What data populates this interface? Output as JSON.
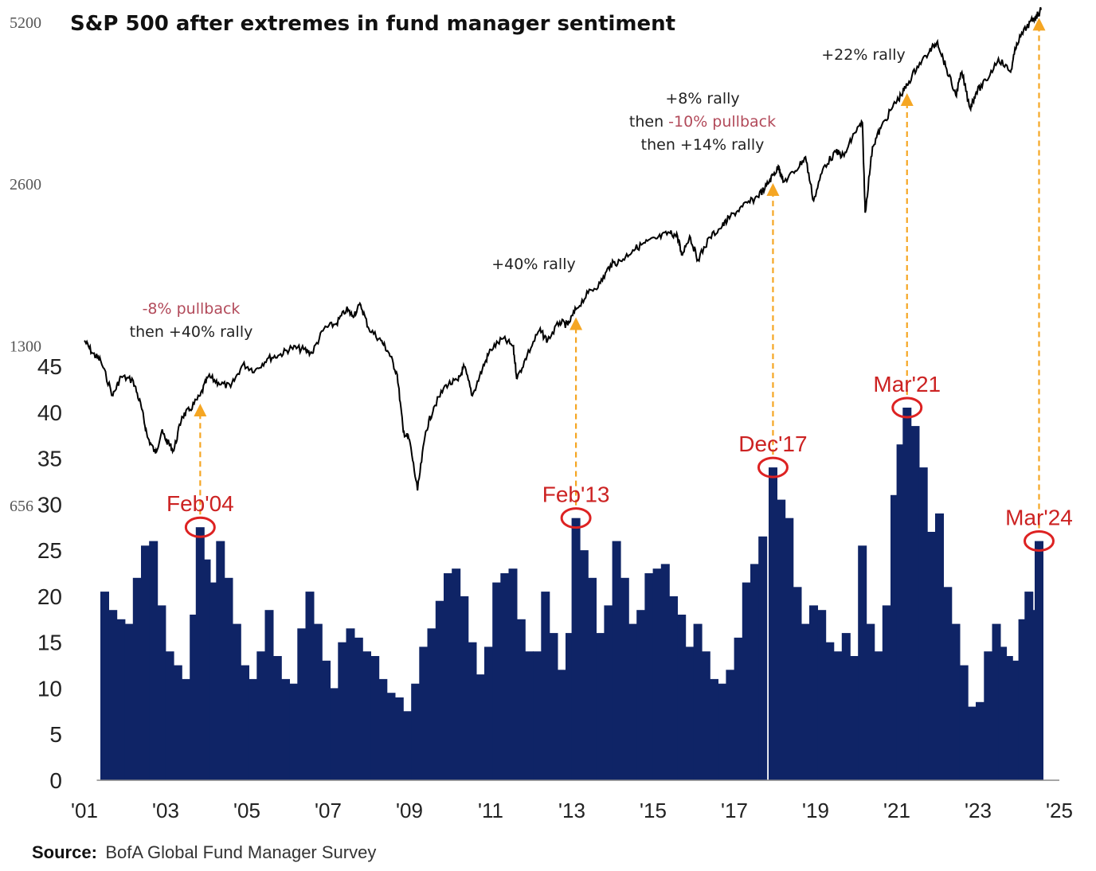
{
  "chart_data": {
    "type": "bar+line",
    "title": "S&P 500 after extremes in fund manager sentiment",
    "source_label": "Source:",
    "source_text": "BofA Global Fund Manager Survey",
    "colors": {
      "bars": "#0f2466",
      "sp500_line": "#000000",
      "arrows": "#f5a623",
      "highlight": "#dd2222",
      "pullback_text": "#b24a5a"
    },
    "x_ticks": [
      "'01",
      "'03",
      "'05",
      "'07",
      "'09",
      "'11",
      "'13",
      "'15",
      "'17",
      "'19",
      "'21",
      "'23",
      "'25"
    ],
    "x_tick_years": [
      2001,
      2003,
      2005,
      2007,
      2009,
      2011,
      2013,
      2015,
      2017,
      2019,
      2021,
      2023,
      2025
    ],
    "x_range": [
      2001,
      2025
    ],
    "bar_axis": {
      "ticks": [
        "0",
        "5",
        "10",
        "15",
        "20",
        "25",
        "30",
        "35",
        "40",
        "45"
      ],
      "ylim": [
        0,
        45
      ]
    },
    "sp500_axis": {
      "ticks": [
        "656",
        "1300",
        "2600",
        "5200"
      ],
      "tick_values": [
        656,
        1300,
        2600,
        5200
      ],
      "scale": "log"
    },
    "bars": [
      [
        2001.5,
        20.5
      ],
      [
        2001.7,
        18.5
      ],
      [
        2001.9,
        17.5
      ],
      [
        2002.1,
        17.0
      ],
      [
        2002.3,
        22.0
      ],
      [
        2002.5,
        25.5
      ],
      [
        2002.7,
        26.0
      ],
      [
        2002.9,
        19.0
      ],
      [
        2003.1,
        14.0
      ],
      [
        2003.3,
        12.5
      ],
      [
        2003.5,
        11.0
      ],
      [
        2003.7,
        18.0
      ],
      [
        2003.85,
        27.5
      ],
      [
        2004.0,
        24.0
      ],
      [
        2004.2,
        21.5
      ],
      [
        2004.35,
        26.0
      ],
      [
        2004.55,
        22.0
      ],
      [
        2004.75,
        17.0
      ],
      [
        2004.95,
        12.5
      ],
      [
        2005.15,
        11.0
      ],
      [
        2005.35,
        14.0
      ],
      [
        2005.55,
        18.5
      ],
      [
        2005.75,
        13.5
      ],
      [
        2005.95,
        11.0
      ],
      [
        2006.15,
        10.5
      ],
      [
        2006.35,
        16.5
      ],
      [
        2006.55,
        20.5
      ],
      [
        2006.75,
        17.0
      ],
      [
        2006.95,
        13.0
      ],
      [
        2007.15,
        10.0
      ],
      [
        2007.35,
        15.0
      ],
      [
        2007.55,
        16.5
      ],
      [
        2007.75,
        15.5
      ],
      [
        2007.95,
        14.0
      ],
      [
        2008.15,
        13.5
      ],
      [
        2008.35,
        11.0
      ],
      [
        2008.55,
        9.5
      ],
      [
        2008.75,
        9.0
      ],
      [
        2008.95,
        7.5
      ],
      [
        2009.15,
        10.5
      ],
      [
        2009.35,
        14.5
      ],
      [
        2009.55,
        16.5
      ],
      [
        2009.75,
        19.5
      ],
      [
        2009.95,
        22.5
      ],
      [
        2010.15,
        23.0
      ],
      [
        2010.35,
        20.0
      ],
      [
        2010.55,
        15.0
      ],
      [
        2010.75,
        11.5
      ],
      [
        2010.95,
        14.5
      ],
      [
        2011.15,
        21.5
      ],
      [
        2011.35,
        22.5
      ],
      [
        2011.55,
        23.0
      ],
      [
        2011.75,
        17.5
      ],
      [
        2011.95,
        14.0
      ],
      [
        2012.15,
        14.0
      ],
      [
        2012.35,
        20.5
      ],
      [
        2012.55,
        16.0
      ],
      [
        2012.75,
        12.0
      ],
      [
        2012.95,
        16.0
      ],
      [
        2013.1,
        28.5
      ],
      [
        2013.3,
        25.0
      ],
      [
        2013.5,
        22.0
      ],
      [
        2013.7,
        16.0
      ],
      [
        2013.9,
        19.0
      ],
      [
        2014.1,
        26.0
      ],
      [
        2014.3,
        22.0
      ],
      [
        2014.5,
        17.0
      ],
      [
        2014.7,
        18.5
      ],
      [
        2014.9,
        22.5
      ],
      [
        2015.1,
        23.0
      ],
      [
        2015.3,
        23.5
      ],
      [
        2015.5,
        20.0
      ],
      [
        2015.7,
        18.0
      ],
      [
        2015.9,
        14.5
      ],
      [
        2016.1,
        17.0
      ],
      [
        2016.3,
        14.0
      ],
      [
        2016.5,
        11.0
      ],
      [
        2016.7,
        10.5
      ],
      [
        2016.9,
        12.0
      ],
      [
        2017.1,
        15.5
      ],
      [
        2017.3,
        21.5
      ],
      [
        2017.5,
        23.5
      ],
      [
        2017.7,
        26.5
      ],
      [
        2017.95,
        34.0
      ],
      [
        2018.15,
        30.5
      ],
      [
        2018.35,
        28.5
      ],
      [
        2018.55,
        21.0
      ],
      [
        2018.75,
        17.0
      ],
      [
        2018.95,
        19.0
      ],
      [
        2019.15,
        18.5
      ],
      [
        2019.35,
        15.0
      ],
      [
        2019.55,
        14.0
      ],
      [
        2019.75,
        16.0
      ],
      [
        2019.95,
        13.5
      ],
      [
        2020.15,
        25.5
      ],
      [
        2020.35,
        17.0
      ],
      [
        2020.55,
        14.0
      ],
      [
        2020.75,
        19.0
      ],
      [
        2020.95,
        31.0
      ],
      [
        2021.1,
        36.5
      ],
      [
        2021.25,
        40.5
      ],
      [
        2021.45,
        38.5
      ],
      [
        2021.65,
        34.0
      ],
      [
        2021.85,
        27.0
      ],
      [
        2022.05,
        29.0
      ],
      [
        2022.25,
        21.0
      ],
      [
        2022.45,
        17.0
      ],
      [
        2022.65,
        12.5
      ],
      [
        2022.85,
        8.0
      ],
      [
        2023.05,
        8.5
      ],
      [
        2023.25,
        14.0
      ],
      [
        2023.45,
        17.0
      ],
      [
        2023.6,
        14.5
      ],
      [
        2023.75,
        13.5
      ],
      [
        2023.95,
        13.0
      ],
      [
        2024.1,
        17.5
      ],
      [
        2024.25,
        20.5
      ],
      [
        2024.4,
        18.5
      ],
      [
        2024.5,
        26.0
      ]
    ],
    "sp500": [
      [
        2001.0,
        1330
      ],
      [
        2001.2,
        1260
      ],
      [
        2001.4,
        1220
      ],
      [
        2001.7,
        1050
      ],
      [
        2001.9,
        1140
      ],
      [
        2002.2,
        1120
      ],
      [
        2002.4,
        1000
      ],
      [
        2002.55,
        880
      ],
      [
        2002.75,
        820
      ],
      [
        2002.9,
        900
      ],
      [
        2003.05,
        860
      ],
      [
        2003.2,
        830
      ],
      [
        2003.4,
        960
      ],
      [
        2003.6,
        990
      ],
      [
        2003.85,
        1050
      ],
      [
        2004.05,
        1140
      ],
      [
        2004.3,
        1110
      ],
      [
        2004.6,
        1090
      ],
      [
        2004.9,
        1200
      ],
      [
        2005.2,
        1170
      ],
      [
        2005.5,
        1230
      ],
      [
        2005.8,
        1250
      ],
      [
        2006.1,
        1290
      ],
      [
        2006.4,
        1280
      ],
      [
        2006.6,
        1260
      ],
      [
        2006.9,
        1400
      ],
      [
        2007.2,
        1430
      ],
      [
        2007.45,
        1520
      ],
      [
        2007.6,
        1480
      ],
      [
        2007.8,
        1550
      ],
      [
        2008.0,
        1400
      ],
      [
        2008.3,
        1330
      ],
      [
        2008.5,
        1260
      ],
      [
        2008.7,
        1150
      ],
      [
        2008.85,
        900
      ],
      [
        2009.0,
        870
      ],
      [
        2009.2,
        700
      ],
      [
        2009.4,
        900
      ],
      [
        2009.6,
        1000
      ],
      [
        2009.9,
        1100
      ],
      [
        2010.2,
        1120
      ],
      [
        2010.35,
        1190
      ],
      [
        2010.55,
        1050
      ],
      [
        2010.8,
        1180
      ],
      [
        2011.0,
        1280
      ],
      [
        2011.3,
        1340
      ],
      [
        2011.55,
        1300
      ],
      [
        2011.65,
        1130
      ],
      [
        2011.9,
        1250
      ],
      [
        2012.2,
        1390
      ],
      [
        2012.4,
        1330
      ],
      [
        2012.7,
        1440
      ],
      [
        2012.9,
        1420
      ],
      [
        2013.1,
        1520
      ],
      [
        2013.4,
        1630
      ],
      [
        2013.7,
        1700
      ],
      [
        2013.95,
        1840
      ],
      [
        2014.2,
        1870
      ],
      [
        2014.5,
        1960
      ],
      [
        2014.8,
        2020
      ],
      [
        2015.1,
        2060
      ],
      [
        2015.4,
        2110
      ],
      [
        2015.6,
        2080
      ],
      [
        2015.7,
        1920
      ],
      [
        2015.9,
        2080
      ],
      [
        2016.1,
        1880
      ],
      [
        2016.4,
        2070
      ],
      [
        2016.7,
        2170
      ],
      [
        2016.9,
        2260
      ],
      [
        2017.2,
        2360
      ],
      [
        2017.5,
        2440
      ],
      [
        2017.75,
        2550
      ],
      [
        2017.95,
        2700
      ],
      [
        2018.1,
        2800
      ],
      [
        2018.2,
        2620
      ],
      [
        2018.5,
        2750
      ],
      [
        2018.75,
        2920
      ],
      [
        2018.95,
        2420
      ],
      [
        2019.2,
        2800
      ],
      [
        2019.5,
        2980
      ],
      [
        2019.7,
        2930
      ],
      [
        2019.95,
        3230
      ],
      [
        2020.15,
        3380
      ],
      [
        2020.22,
        2300
      ],
      [
        2020.4,
        3050
      ],
      [
        2020.6,
        3300
      ],
      [
        2020.9,
        3620
      ],
      [
        2021.1,
        3800
      ],
      [
        2021.25,
        3970
      ],
      [
        2021.5,
        4300
      ],
      [
        2021.8,
        4580
      ],
      [
        2022.0,
        4790
      ],
      [
        2022.2,
        4300
      ],
      [
        2022.45,
        3800
      ],
      [
        2022.6,
        4200
      ],
      [
        2022.8,
        3600
      ],
      [
        2022.95,
        3850
      ],
      [
        2023.2,
        4050
      ],
      [
        2023.5,
        4450
      ],
      [
        2023.8,
        4200
      ],
      [
        2023.95,
        4750
      ],
      [
        2024.2,
        5100
      ],
      [
        2024.4,
        5300
      ],
      [
        2024.55,
        5480
      ]
    ],
    "highlights": [
      {
        "label": "Feb'04",
        "x": 2003.85,
        "value": 27.5,
        "sp": 1050
      },
      {
        "label": "Feb'13",
        "x": 2013.1,
        "value": 28.5,
        "sp": 1520
      },
      {
        "label": "Dec'17",
        "x": 2017.95,
        "value": 34.0,
        "sp": 2700
      },
      {
        "label": "Mar'21",
        "x": 2021.25,
        "value": 40.5,
        "sp": 3970
      },
      {
        "label": "Mar'24",
        "x": 2024.5,
        "value": 26.0,
        "sp": 5480
      }
    ],
    "annotations": [
      {
        "id": "ann-2004",
        "lines": [
          {
            "text": "-8% pullback",
            "tone": "red"
          },
          {
            "text": "then +40% rally",
            "tone": "dark"
          }
        ]
      },
      {
        "id": "ann-2013",
        "lines": [
          {
            "text": "+40% rally",
            "tone": "dark"
          }
        ]
      },
      {
        "id": "ann-2017",
        "lines": [
          {
            "text": "+8% rally",
            "tone": "dark"
          },
          {
            "parts": [
              {
                "text": "then ",
                "tone": "dark"
              },
              {
                "text": "-10% pullback",
                "tone": "red"
              }
            ]
          },
          {
            "text": "then +14% rally",
            "tone": "dark"
          }
        ]
      },
      {
        "id": "ann-2021",
        "lines": [
          {
            "text": "+22% rally",
            "tone": "dark"
          }
        ]
      }
    ]
  }
}
